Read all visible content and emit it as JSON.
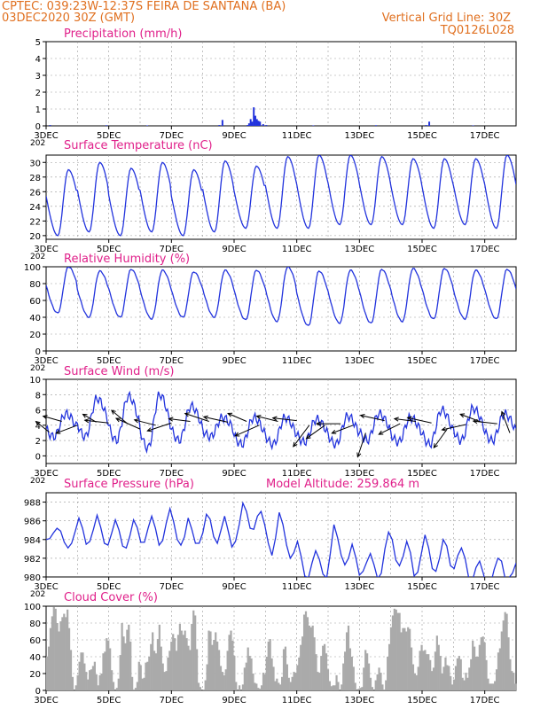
{
  "header": {
    "line1": "CPTEC:   039:23W-12:37S   FEIRA DE SANTANA (BA)",
    "line2": "03DEC2020 30Z (GMT)",
    "grid_note": "Vertical Grid Line: 30Z",
    "code": "TQ0126L028"
  },
  "colors": {
    "header": "#e07020",
    "title": "#e0208a",
    "line": "#2233dd",
    "bar": "#aaaaaa",
    "grid": "#999999"
  },
  "x_axis": {
    "labels": [
      "3DEC",
      "5DEC",
      "7DEC",
      "9DEC",
      "11DEC",
      "13DEC",
      "15DEC",
      "17DEC"
    ],
    "label_days": [
      0,
      2,
      4,
      6,
      8,
      10,
      12,
      14
    ],
    "sub_label": "202",
    "range_days": [
      0,
      15
    ]
  },
  "chart_data": [
    {
      "type": "bar",
      "title": "Precipitation (mm/h)",
      "ylim": [
        0,
        5
      ],
      "yticks": [
        0,
        1,
        2,
        3,
        4,
        5
      ],
      "ytick_labels": [
        "0",
        "1",
        "2",
        "3",
        "4",
        "5"
      ],
      "grid": true,
      "points": [
        [
          0.1,
          0.05
        ],
        [
          1.9,
          0.04
        ],
        [
          3.2,
          0.03
        ],
        [
          5.5,
          0.05
        ],
        [
          5.6,
          0.35
        ],
        [
          6.4,
          0.05
        ],
        [
          6.45,
          0.15
        ],
        [
          6.5,
          0.4
        ],
        [
          6.55,
          0.25
        ],
        [
          6.6,
          1.1
        ],
        [
          6.65,
          0.6
        ],
        [
          6.7,
          0.4
        ],
        [
          6.75,
          0.3
        ],
        [
          6.8,
          0.25
        ],
        [
          6.9,
          0.1
        ],
        [
          7.0,
          0.05
        ],
        [
          8.5,
          0.03
        ],
        [
          10.5,
          0.04
        ],
        [
          12.1,
          0.05
        ],
        [
          12.2,
          0.25
        ],
        [
          13.6,
          0.03
        ],
        [
          15.0,
          0.2
        ]
      ]
    },
    {
      "type": "line",
      "title": "Surface Temperature (nC)",
      "ylim": [
        19.5,
        31
      ],
      "yticks": [
        20,
        22,
        24,
        26,
        28,
        30
      ],
      "ytick_labels": [
        "20",
        "22",
        "24",
        "26",
        "28",
        "30"
      ],
      "grid": true,
      "minmax": [
        [
          20.0,
          29.0
        ],
        [
          20.5,
          30.0
        ],
        [
          20.0,
          29.2
        ],
        [
          20.5,
          30.0
        ],
        [
          20.0,
          29.0
        ],
        [
          20.5,
          30.2
        ],
        [
          21.0,
          29.5
        ],
        [
          21.0,
          30.8
        ],
        [
          21.0,
          31.0
        ],
        [
          21.5,
          31.0
        ],
        [
          21.5,
          30.8
        ],
        [
          21.5,
          30.5
        ],
        [
          21.0,
          30.5
        ],
        [
          21.5,
          30.5
        ],
        [
          21.0,
          31.0
        ]
      ]
    },
    {
      "type": "line",
      "title": "Relative Humidity (%)",
      "ylim": [
        0,
        100
      ],
      "yticks": [
        0,
        20,
        40,
        60,
        80,
        100
      ],
      "ytick_labels": [
        "0",
        "20",
        "40",
        "60",
        "80",
        "100"
      ],
      "grid": true,
      "minmax": [
        [
          100,
          45
        ],
        [
          95,
          40
        ],
        [
          97,
          40
        ],
        [
          96,
          38
        ],
        [
          94,
          40
        ],
        [
          96,
          40
        ],
        [
          96,
          37
        ],
        [
          100,
          35
        ],
        [
          95,
          30
        ],
        [
          96,
          33
        ],
        [
          97,
          33
        ],
        [
          98,
          35
        ],
        [
          98,
          38
        ],
        [
          96,
          38
        ],
        [
          97,
          38
        ]
      ]
    },
    {
      "type": "line",
      "title": "Surface Wind (m/s)",
      "ylim": [
        -1,
        10
      ],
      "yticks": [
        0,
        2,
        4,
        6,
        8,
        10
      ],
      "ytick_labels": [
        "0",
        "2",
        "4",
        "6",
        "8",
        "10"
      ],
      "grid": true,
      "maxmin": [
        [
          5.5,
          2.5
        ],
        [
          7.5,
          2.5
        ],
        [
          7.8,
          2.0
        ],
        [
          8.0,
          1.0
        ],
        [
          6.5,
          2.0
        ],
        [
          5.0,
          2.5
        ],
        [
          5.0,
          1.5
        ],
        [
          5.0,
          1.5
        ],
        [
          4.8,
          1.8
        ],
        [
          5.2,
          1.5
        ],
        [
          5.5,
          2.0
        ],
        [
          5.0,
          1.8
        ],
        [
          6.0,
          1.5
        ],
        [
          6.2,
          2.0
        ],
        [
          5.5,
          2.0
        ]
      ],
      "arrows": [
        [
          0.1,
          3.1,
          -0.5,
          0.4
        ],
        [
          0.5,
          4.5,
          -0.7,
          0.2
        ],
        [
          1.0,
          4.0,
          -0.8,
          -0.3
        ],
        [
          1.6,
          4.4,
          -0.5,
          0.3
        ],
        [
          2.0,
          4.3,
          -0.9,
          0.1
        ],
        [
          2.6,
          4.2,
          -0.6,
          0.5
        ],
        [
          3.0,
          3.5,
          -0.9,
          0.4
        ],
        [
          3.5,
          4.0,
          -0.8,
          0.2
        ],
        [
          4.0,
          4.3,
          -0.9,
          -0.3
        ],
        [
          4.6,
          4.5,
          -0.8,
          0.1
        ],
        [
          5.2,
          4.5,
          -0.9,
          0.3
        ],
        [
          5.8,
          4.4,
          -0.9,
          0.2
        ],
        [
          6.4,
          4.5,
          -0.7,
          0.3
        ],
        [
          6.8,
          4.0,
          -0.9,
          -0.4
        ],
        [
          7.4,
          4.5,
          -0.8,
          0.2
        ],
        [
          8.0,
          4.6,
          -0.9,
          0.1
        ],
        [
          8.4,
          4.0,
          -0.6,
          -0.8
        ],
        [
          8.9,
          4.0,
          -0.7,
          -0.5
        ],
        [
          9.4,
          4.2,
          -0.9,
          0.0
        ],
        [
          9.8,
          4.0,
          -0.8,
          -0.3
        ],
        [
          10.2,
          3.0,
          -0.3,
          -0.9
        ],
        [
          10.8,
          4.6,
          -0.9,
          0.2
        ],
        [
          11.3,
          4.2,
          -0.8,
          -0.4
        ],
        [
          11.8,
          4.5,
          -0.8,
          0.1
        ],
        [
          12.3,
          4.3,
          -0.9,
          0.2
        ],
        [
          12.8,
          3.5,
          -0.5,
          -0.7
        ],
        [
          13.4,
          4.1,
          -0.9,
          -0.2
        ],
        [
          13.9,
          4.4,
          -0.8,
          0.3
        ],
        [
          14.4,
          4.2,
          -0.9,
          0.1
        ],
        [
          14.8,
          3.0,
          -0.3,
          0.8
        ]
      ]
    },
    {
      "type": "line",
      "title": "Surface Pressure (hPa)",
      "note": "Model Altitude: 259.864 m",
      "ylim": [
        980,
        989
      ],
      "yticks": [
        980,
        982,
        984,
        986,
        988
      ],
      "ytick_labels": [
        "980",
        "982",
        "984",
        "986",
        "988"
      ],
      "grid": true,
      "values": [
        984.0,
        984.1,
        984.7,
        985.2,
        984.9,
        983.7,
        983.1,
        983.6,
        984.9,
        986.3,
        985.2,
        983.5,
        983.8,
        985.1,
        986.6,
        985.3,
        983.6,
        983.4,
        984.7,
        986.1,
        985.0,
        983.3,
        983.1,
        984.4,
        986.1,
        985.3,
        983.7,
        983.7,
        985.2,
        986.5,
        985.2,
        983.4,
        983.9,
        985.8,
        987.3,
        985.9,
        984.0,
        983.4,
        984.3,
        986.3,
        985.1,
        983.6,
        983.6,
        984.7,
        986.7,
        986.2,
        984.3,
        983.6,
        985.0,
        986.5,
        984.9,
        983.2,
        983.8,
        985.6,
        987.9,
        987.0,
        985.2,
        985.1,
        986.5,
        987.0,
        985.6,
        983.6,
        982.3,
        984.2,
        986.9,
        985.6,
        983.4,
        982.0,
        982.6,
        983.8,
        982.2,
        980.1,
        979.9,
        981.5,
        982.8,
        981.9,
        980.3,
        979.9,
        982.5,
        985.6,
        984.2,
        982.3,
        981.3,
        982.0,
        983.5,
        982.1,
        980.2,
        980.6,
        981.6,
        982.5,
        981.3,
        979.8,
        980.4,
        983.0,
        984.8,
        984.0,
        981.8,
        981.2,
        982.2,
        983.8,
        982.6,
        980.1,
        980.5,
        982.5,
        984.5,
        983.1,
        980.9,
        980.6,
        982.0,
        984.0,
        983.3,
        981.2,
        980.9,
        982.3,
        983.1,
        982.0,
        979.9,
        979.6,
        981.0,
        981.7,
        980.4,
        978.8,
        979.2,
        980.8,
        982.0,
        981.7,
        979.8,
        979.9,
        980.4,
        981.5
      ]
    },
    {
      "type": "bar",
      "title": "Cloud Cover (%)",
      "ylim": [
        0,
        100
      ],
      "yticks": [
        0,
        20,
        40,
        60,
        80,
        100
      ],
      "ytick_labels": [
        "0",
        "20",
        "40",
        "60",
        "80",
        "100"
      ],
      "grid": true,
      "values": [
        40,
        52,
        74,
        88,
        99,
        97,
        80,
        70,
        82,
        87,
        91,
        87,
        96,
        74,
        48,
        16,
        0,
        6,
        18,
        34,
        45,
        45,
        32,
        22,
        13,
        24,
        25,
        29,
        34,
        19,
        6,
        18,
        20,
        44,
        46,
        62,
        59,
        50,
        24,
        10,
        0,
        3,
        14,
        42,
        80,
        64,
        56,
        72,
        78,
        58,
        16,
        1,
        3,
        10,
        34,
        30,
        14,
        15,
        33,
        34,
        40,
        55,
        69,
        47,
        44,
        61,
        78,
        52,
        32,
        22,
        23,
        39,
        47,
        58,
        67,
        62,
        47,
        66,
        79,
        71,
        66,
        71,
        62,
        53,
        48,
        79,
        95,
        89,
        49,
        9,
        4,
        0,
        1,
        12,
        31,
        71,
        70,
        54,
        60,
        69,
        58,
        48,
        29,
        22,
        18,
        25,
        47,
        66,
        71,
        59,
        41,
        10,
        0,
        6,
        0,
        7,
        27,
        33,
        51,
        41,
        38,
        20,
        9,
        8,
        3,
        2,
        6,
        21,
        19,
        40,
        58,
        61,
        38,
        28,
        11,
        14,
        9,
        7,
        16,
        49,
        52,
        31,
        15,
        10,
        16,
        22,
        21,
        30,
        39,
        54,
        64,
        90,
        94,
        87,
        77,
        75,
        77,
        63,
        43,
        22,
        21,
        41,
        53,
        55,
        44,
        25,
        11,
        5,
        6,
        6,
        18,
        10,
        0,
        7,
        32,
        46,
        69,
        77,
        50,
        40,
        28,
        9,
        0,
        2,
        3,
        4,
        27,
        48,
        44,
        32,
        15,
        4,
        0,
        12,
        19,
        27,
        21,
        7,
        1,
        12,
        40,
        55,
        75,
        89,
        97,
        96,
        92,
        92,
        69,
        74,
        74,
        70,
        75,
        73,
        51,
        31,
        20,
        18,
        28,
        47,
        54,
        47,
        48,
        43,
        43,
        36,
        23,
        27,
        46,
        65,
        54,
        41,
        20,
        28,
        39,
        30,
        29,
        17,
        7,
        13,
        29,
        38,
        41,
        37,
        15,
        12,
        21,
        15,
        27,
        37,
        59,
        52,
        40,
        40,
        54,
        63,
        64,
        57,
        36,
        14,
        8,
        8,
        8,
        11,
        25,
        45,
        50,
        70,
        83,
        93,
        91,
        63,
        37,
        23,
        21,
        8
      ]
    }
  ]
}
